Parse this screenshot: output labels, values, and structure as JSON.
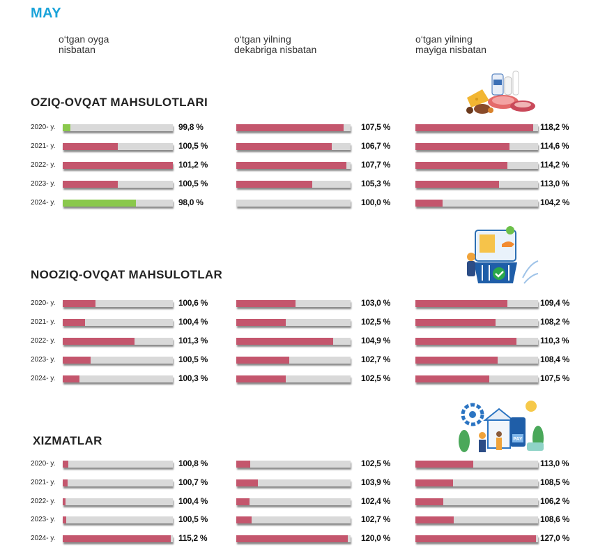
{
  "title": "MAY",
  "column_headers": [
    "o‘tgan oyga\nnisbatan",
    "o‘tgan yilning\ndekabriga nisbatan",
    "o‘tgan yilning\nmayiga nisbatan"
  ],
  "colors": {
    "bar": "#c4566d",
    "bar_low": "#8ac84c",
    "track": "#d9d9d9",
    "title": "#1aa3d9"
  },
  "chart_data": [
    {
      "type": "bar",
      "title": "OZIQ-OVQAT MAHSULOTLARI",
      "icon": "food-groceries-illustration",
      "categories": [
        "2020- y.",
        "2021- y.",
        "2022- y.",
        "2023- y.",
        "2024- y."
      ],
      "columns": [
        {
          "values": [
            99.8,
            100.5,
            101.2,
            100.5,
            98.0
          ],
          "labels": [
            "99,8 %",
            "100,5 %",
            "101,2 %",
            "100,5 %",
            "98,0 %"
          ]
        },
        {
          "values": [
            107.5,
            106.7,
            107.7,
            105.3,
            100.0
          ],
          "labels": [
            "107,5 %",
            "106,7 %",
            "107,7 %",
            "105,3 %",
            "100,0 %"
          ]
        },
        {
          "values": [
            118.2,
            114.6,
            114.2,
            113.0,
            104.2
          ],
          "labels": [
            "118,2 %",
            "114,6 %",
            "114,2 %",
            "113,0 %",
            "104,2 %"
          ]
        }
      ]
    },
    {
      "type": "bar",
      "title": "NOOZIQ-OVQAT MAHSULOTLAR",
      "icon": "shopping-basket-illustration",
      "categories": [
        "2020- y.",
        "2021- y.",
        "2022- y.",
        "2023- y.",
        "2024- y."
      ],
      "columns": [
        {
          "values": [
            100.6,
            100.4,
            101.3,
            100.5,
            100.3
          ],
          "labels": [
            "100,6 %",
            "100,4 %",
            "101,3 %",
            "100,5 %",
            "100,3 %"
          ]
        },
        {
          "values": [
            103.0,
            102.5,
            104.9,
            102.7,
            102.5
          ],
          "labels": [
            "103,0 %",
            "102,5 %",
            "104,9 %",
            "102,7 %",
            "102,5 %"
          ]
        },
        {
          "values": [
            109.4,
            108.2,
            110.3,
            108.4,
            107.5
          ],
          "labels": [
            "109,4 %",
            "108,2 %",
            "110,3 %",
            "108,4 %",
            "107,5 %"
          ]
        }
      ]
    },
    {
      "type": "bar",
      "title": "XIZMATLAR",
      "icon": "services-illustration",
      "icon_text": "PAY",
      "categories": [
        "2020- y.",
        "2021- y.",
        "2022- y.",
        "2023- y.",
        "2024- y."
      ],
      "columns": [
        {
          "values": [
            100.8,
            100.7,
            100.4,
            100.5,
            115.2
          ],
          "labels": [
            "100,8 %",
            "100,7 %",
            "100,4 %",
            "100,5 %",
            "115,2 %"
          ]
        },
        {
          "values": [
            102.5,
            103.9,
            102.4,
            102.7,
            120.0
          ],
          "labels": [
            "102,5 %",
            "103,9 %",
            "102,4 %",
            "102,7 %",
            "120,0 %"
          ]
        },
        {
          "values": [
            113.0,
            108.5,
            106.2,
            108.6,
            127.0
          ],
          "labels": [
            "113,0 %",
            "108,5 %",
            "106,2 %",
            "108,6 %",
            "127,0 %"
          ]
        }
      ]
    }
  ]
}
